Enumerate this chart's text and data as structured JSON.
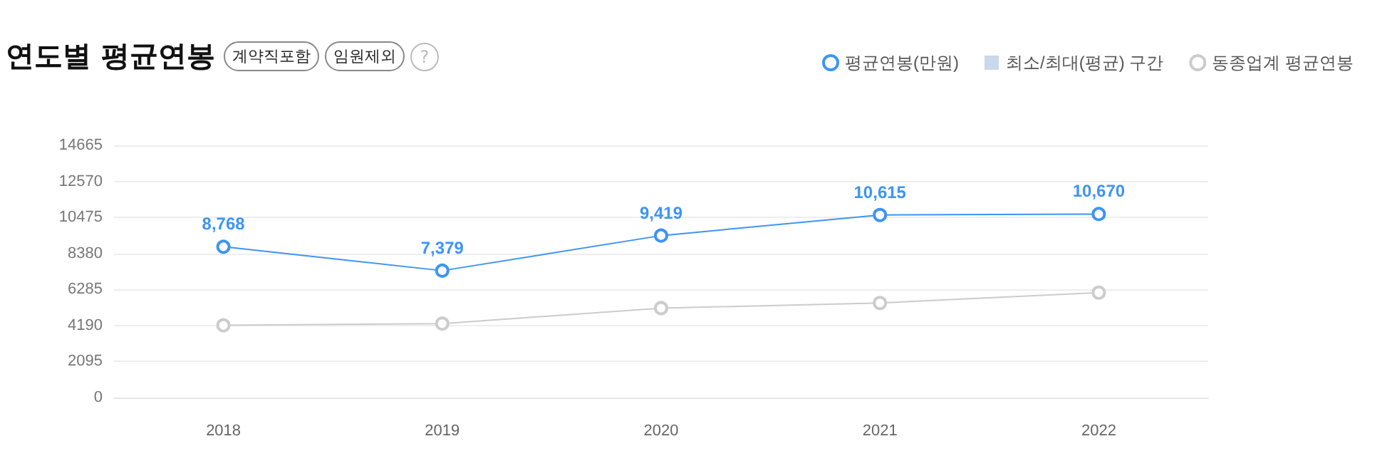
{
  "chart_data": {
    "type": "line",
    "title": "연도별 평균연봉",
    "annotations": [
      "계약직포함",
      "임원제외",
      "?"
    ],
    "categories": [
      "2018",
      "2019",
      "2020",
      "2021",
      "2022"
    ],
    "series": [
      {
        "name": "평균연봉(만원)",
        "color": "#3d94f6",
        "values": [
          8768,
          7379,
          9419,
          10615,
          10670
        ],
        "value_labels": [
          "8,768",
          "7,379",
          "9,419",
          "10,615",
          "10,670"
        ]
      },
      {
        "name": "최소/최대(평균) 구간",
        "type": "area",
        "color": "#c9d8ea",
        "values": [
          null,
          null,
          null,
          null,
          null
        ]
      },
      {
        "name": "동종업계 평균연봉",
        "color": "#cccccc",
        "values": [
          4200,
          4300,
          5200,
          5500,
          6100
        ]
      }
    ],
    "ylim": [
      0,
      14665
    ],
    "yticks": [
      0,
      2095,
      4190,
      6285,
      8380,
      10475,
      12570,
      14665
    ],
    "grid": "y",
    "legend": "top right",
    "marker": "circle",
    "line_style": "solid"
  }
}
